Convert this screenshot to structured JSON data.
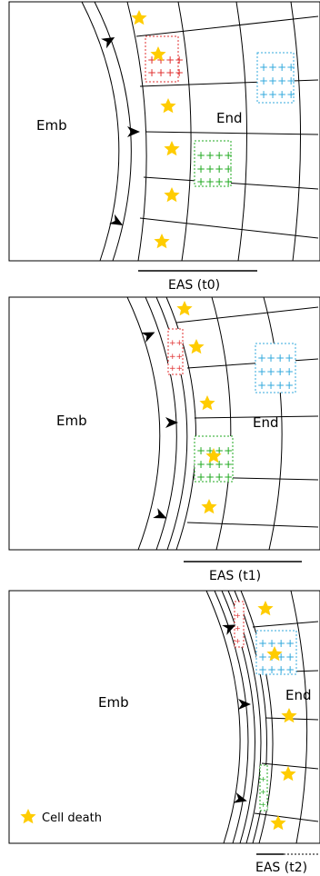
{
  "panels": [
    {
      "id": "t0",
      "embryo_label": "Emb",
      "endosperm_label": "End",
      "eas_label": "EAS (t0)"
    },
    {
      "id": "t1",
      "embryo_label": "Emb",
      "endosperm_label": "End",
      "eas_label": "EAS (t1)"
    },
    {
      "id": "t2",
      "embryo_label": "Emb",
      "endosperm_label": "End",
      "eas_label": "EAS (t2)"
    }
  ],
  "legend": {
    "label": "Cell death",
    "icon": "star-icon"
  },
  "colors": {
    "line": "#000000",
    "star": "#ffcc00",
    "red_cells": "#e03030",
    "green_cells": "#22aa22",
    "blue_cells": "#33aadd"
  }
}
